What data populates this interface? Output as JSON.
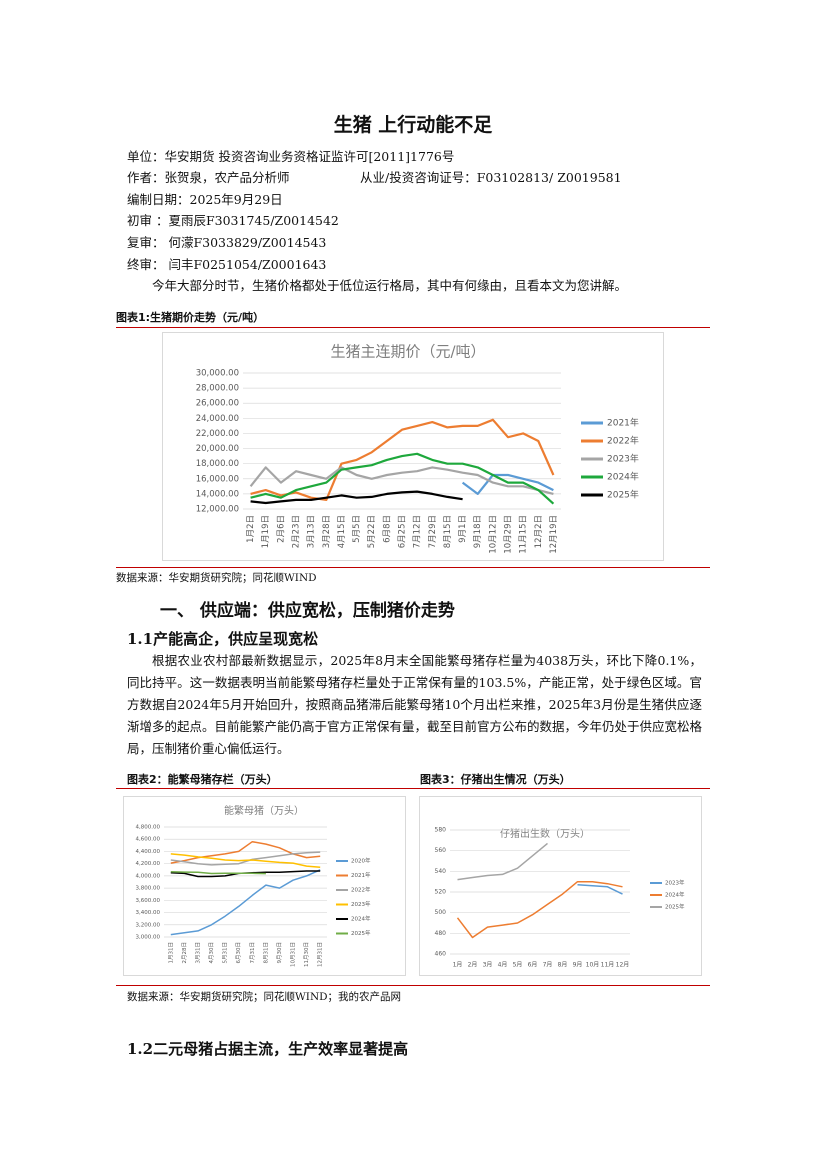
{
  "title": "生猪 上行动能不足",
  "info": [
    "单位：华安期货 投资咨询业务资格证监许可[2011]1776号",
    "作者：张贺泉，农产品分析师",
    "从业/投资咨询证号：F03102813/ Z0019581",
    "编制日期：2025年9月29日",
    "初审 ：夏雨辰F3031745/Z0014542",
    "复审： 何濛F3033829/Z0014543",
    "终审： 闫丰F0251054/Z0001643"
  ],
  "intro": "今年大部分时节，生猪价格都处于低位运行格局，其中有何缘由，且看本文为您讲解。",
  "figure_1_caption": "图表1:生猪期价走势（元/吨）",
  "source_1": "数据来源：华安期货研究院；同花顺WIND",
  "section_1_heading": "一、  供应端：供应宽松，压制猪价走势",
  "subsection_1_1_heading": "1.1产能高企，供应呈现宽松",
  "paragraph_1_1": "根据农业农村部最新数据显示，2025年8月末全国能繁母猪存栏量为4038万头，环比下降0.1%，同比持平。这一数据表明当前能繁母猪存栏量处于正常保有量的103.5%，产能正常，处于绿色区域。官方数据自2024年5月开始回升，按照商品猪滞后能繁母猪10个月出栏来推，2025年3月份是生猪供应逐渐增多的起点。目前能繁产能仍高于官方正常保有量，截至目前官方公布的数据，今年仍处于供应宽松格局，压制猪价重心偏低运行。",
  "figure_2_caption": "图表2：能繁母猪存栏（万头）",
  "figure_3_caption": "图表3：仔猪出生情况（万头）",
  "source_2": "数据来源：华安期货研究院；同花顺WIND；我的农产品网",
  "subsection_1_2_heading": "1.2二元母猪占据主流，生产效率显著提高",
  "chart_data": [
    {
      "type": "line",
      "title": "生猪主连期价（元/吨）",
      "categories": [
        "1月2日",
        "1月19日",
        "2月6日",
        "2月23日",
        "3月13日",
        "3月28日",
        "4月15日",
        "5月5日",
        "5月22日",
        "6月8日",
        "6月25日",
        "7月12日",
        "7月29日",
        "8月15日",
        "9月1日",
        "9月18日",
        "10月12日",
        "10月29日",
        "11月15日",
        "12月2日",
        "12月19日"
      ],
      "ylim": [
        12000,
        30000
      ],
      "yticks": [
        {
          "value": 12000,
          "label": "12,000.00"
        },
        {
          "value": 14000,
          "label": "14,000.00"
        },
        {
          "value": 16000,
          "label": "16,000.00"
        },
        {
          "value": 18000,
          "label": "18,000.00"
        },
        {
          "value": 20000,
          "label": "20,000.00"
        },
        {
          "value": 22000,
          "label": "22,000.00"
        },
        {
          "value": 24000,
          "label": "24,000.00"
        },
        {
          "value": 26000,
          "label": "26,000.00"
        },
        {
          "value": 28000,
          "label": "28,000.00"
        },
        {
          "value": 30000,
          "label": "30,000.00"
        }
      ],
      "grid": true,
      "legend": "right",
      "series": [
        {
          "name": "2021年",
          "color": "#5b9bd5",
          "values": [
            null,
            null,
            null,
            null,
            null,
            null,
            null,
            null,
            null,
            null,
            null,
            null,
            null,
            null,
            15500,
            14000,
            16500,
            16500,
            16000,
            15500,
            14500
          ]
        },
        {
          "name": "2022年",
          "color": "#ed7d31",
          "values": [
            14000,
            14500,
            13800,
            14200,
            13500,
            13200,
            18000,
            18500,
            19500,
            21000,
            22500,
            23000,
            23500,
            22800,
            23000,
            23000,
            23800,
            21500,
            22000,
            21000,
            16500
          ]
        },
        {
          "name": "2023年",
          "color": "#a5a5a5",
          "values": [
            15000,
            17500,
            15500,
            17000,
            16500,
            16000,
            17500,
            16500,
            16000,
            16500,
            16800,
            17000,
            17500,
            17200,
            16800,
            16500,
            15500,
            15000,
            15000,
            14500,
            14000
          ]
        },
        {
          "name": "2024年",
          "color": "#1ea83c",
          "values": [
            13500,
            14000,
            13500,
            14500,
            15000,
            15500,
            17200,
            17500,
            17800,
            18500,
            19000,
            19300,
            18500,
            18000,
            18000,
            17500,
            16500,
            15500,
            15500,
            14500,
            12700
          ]
        },
        {
          "name": "2025年",
          "color": "#000000",
          "values": [
            13000,
            12800,
            13000,
            13200,
            13200,
            13500,
            13800,
            13500,
            13600,
            14000,
            14200,
            14300,
            14000,
            13600,
            13300,
            null,
            null,
            null,
            null,
            null,
            null
          ]
        }
      ]
    },
    {
      "type": "line",
      "title": "能繁母猪（万头）",
      "categories": [
        "1月31日",
        "2月28日",
        "3月31日",
        "4月30日",
        "5月31日",
        "6月30日",
        "7月31日",
        "8月31日",
        "9月30日",
        "10月31日",
        "11月30日",
        "12月31日"
      ],
      "ylim": [
        3000,
        4800
      ],
      "yticks": [
        {
          "value": 3000,
          "label": "3,000.00"
        },
        {
          "value": 3200,
          "label": "3,200.00"
        },
        {
          "value": 3400,
          "label": "3,400.00"
        },
        {
          "value": 3600,
          "label": "3,600.00"
        },
        {
          "value": 3800,
          "label": "3,800.00"
        },
        {
          "value": 4000,
          "label": "4,000.00"
        },
        {
          "value": 4200,
          "label": "4,200.00"
        },
        {
          "value": 4400,
          "label": "4,400.00"
        },
        {
          "value": 4600,
          "label": "4,600.00"
        },
        {
          "value": 4800,
          "label": "4,800.00"
        }
      ],
      "grid": true,
      "legend": "right",
      "series": [
        {
          "name": "2020年",
          "color": "#5b9bd5",
          "values": [
            3040,
            3070,
            3100,
            3200,
            3340,
            3500,
            3680,
            3850,
            3800,
            3930,
            4000,
            4100
          ]
        },
        {
          "name": "2021年",
          "color": "#ed7d31",
          "values": [
            4210,
            4250,
            4300,
            4330,
            4360,
            4400,
            4560,
            4520,
            4460,
            4360,
            4300,
            4320
          ]
        },
        {
          "name": "2022年",
          "color": "#a5a5a5",
          "values": [
            4260,
            4230,
            4200,
            4180,
            4190,
            4200,
            4270,
            4300,
            4330,
            4360,
            4380,
            4390
          ]
        },
        {
          "name": "2023年",
          "color": "#ffc000",
          "values": [
            4360,
            4340,
            4310,
            4290,
            4260,
            4250,
            4260,
            4240,
            4220,
            4210,
            4160,
            4140
          ]
        },
        {
          "name": "2024年",
          "color": "#000000",
          "values": [
            4050,
            4040,
            3990,
            3990,
            4000,
            4040,
            4050,
            4060,
            4060,
            4070,
            4080,
            4080
          ]
        },
        {
          "name": "2025年",
          "color": "#70ad47",
          "values": [
            4067,
            4062,
            4059,
            4039,
            4042,
            4043,
            4042,
            4038,
            null,
            null,
            null,
            null
          ]
        }
      ]
    },
    {
      "type": "line",
      "title": "仔猪出生数（万头）",
      "categories": [
        "1月",
        "2月",
        "3月",
        "4月",
        "5月",
        "6月",
        "7月",
        "8月",
        "9月",
        "10月",
        "11月",
        "12月"
      ],
      "ylim": [
        460,
        580
      ],
      "yticks": [
        460,
        480,
        500,
        520,
        540,
        560,
        580
      ],
      "grid": true,
      "legend": "right",
      "series": [
        {
          "name": "2023年",
          "color": "#5b9bd5",
          "values": [
            null,
            null,
            null,
            null,
            null,
            null,
            null,
            null,
            527,
            526,
            525,
            518
          ]
        },
        {
          "name": "2024年",
          "color": "#ed7d31",
          "values": [
            495,
            476,
            486,
            488,
            490,
            498,
            508,
            518,
            530,
            530,
            528,
            525
          ]
        },
        {
          "name": "2025年",
          "color": "#a5a5a5",
          "values": [
            532,
            534,
            536,
            537,
            543,
            555,
            567,
            null,
            null,
            null,
            null,
            null
          ]
        }
      ]
    }
  ]
}
